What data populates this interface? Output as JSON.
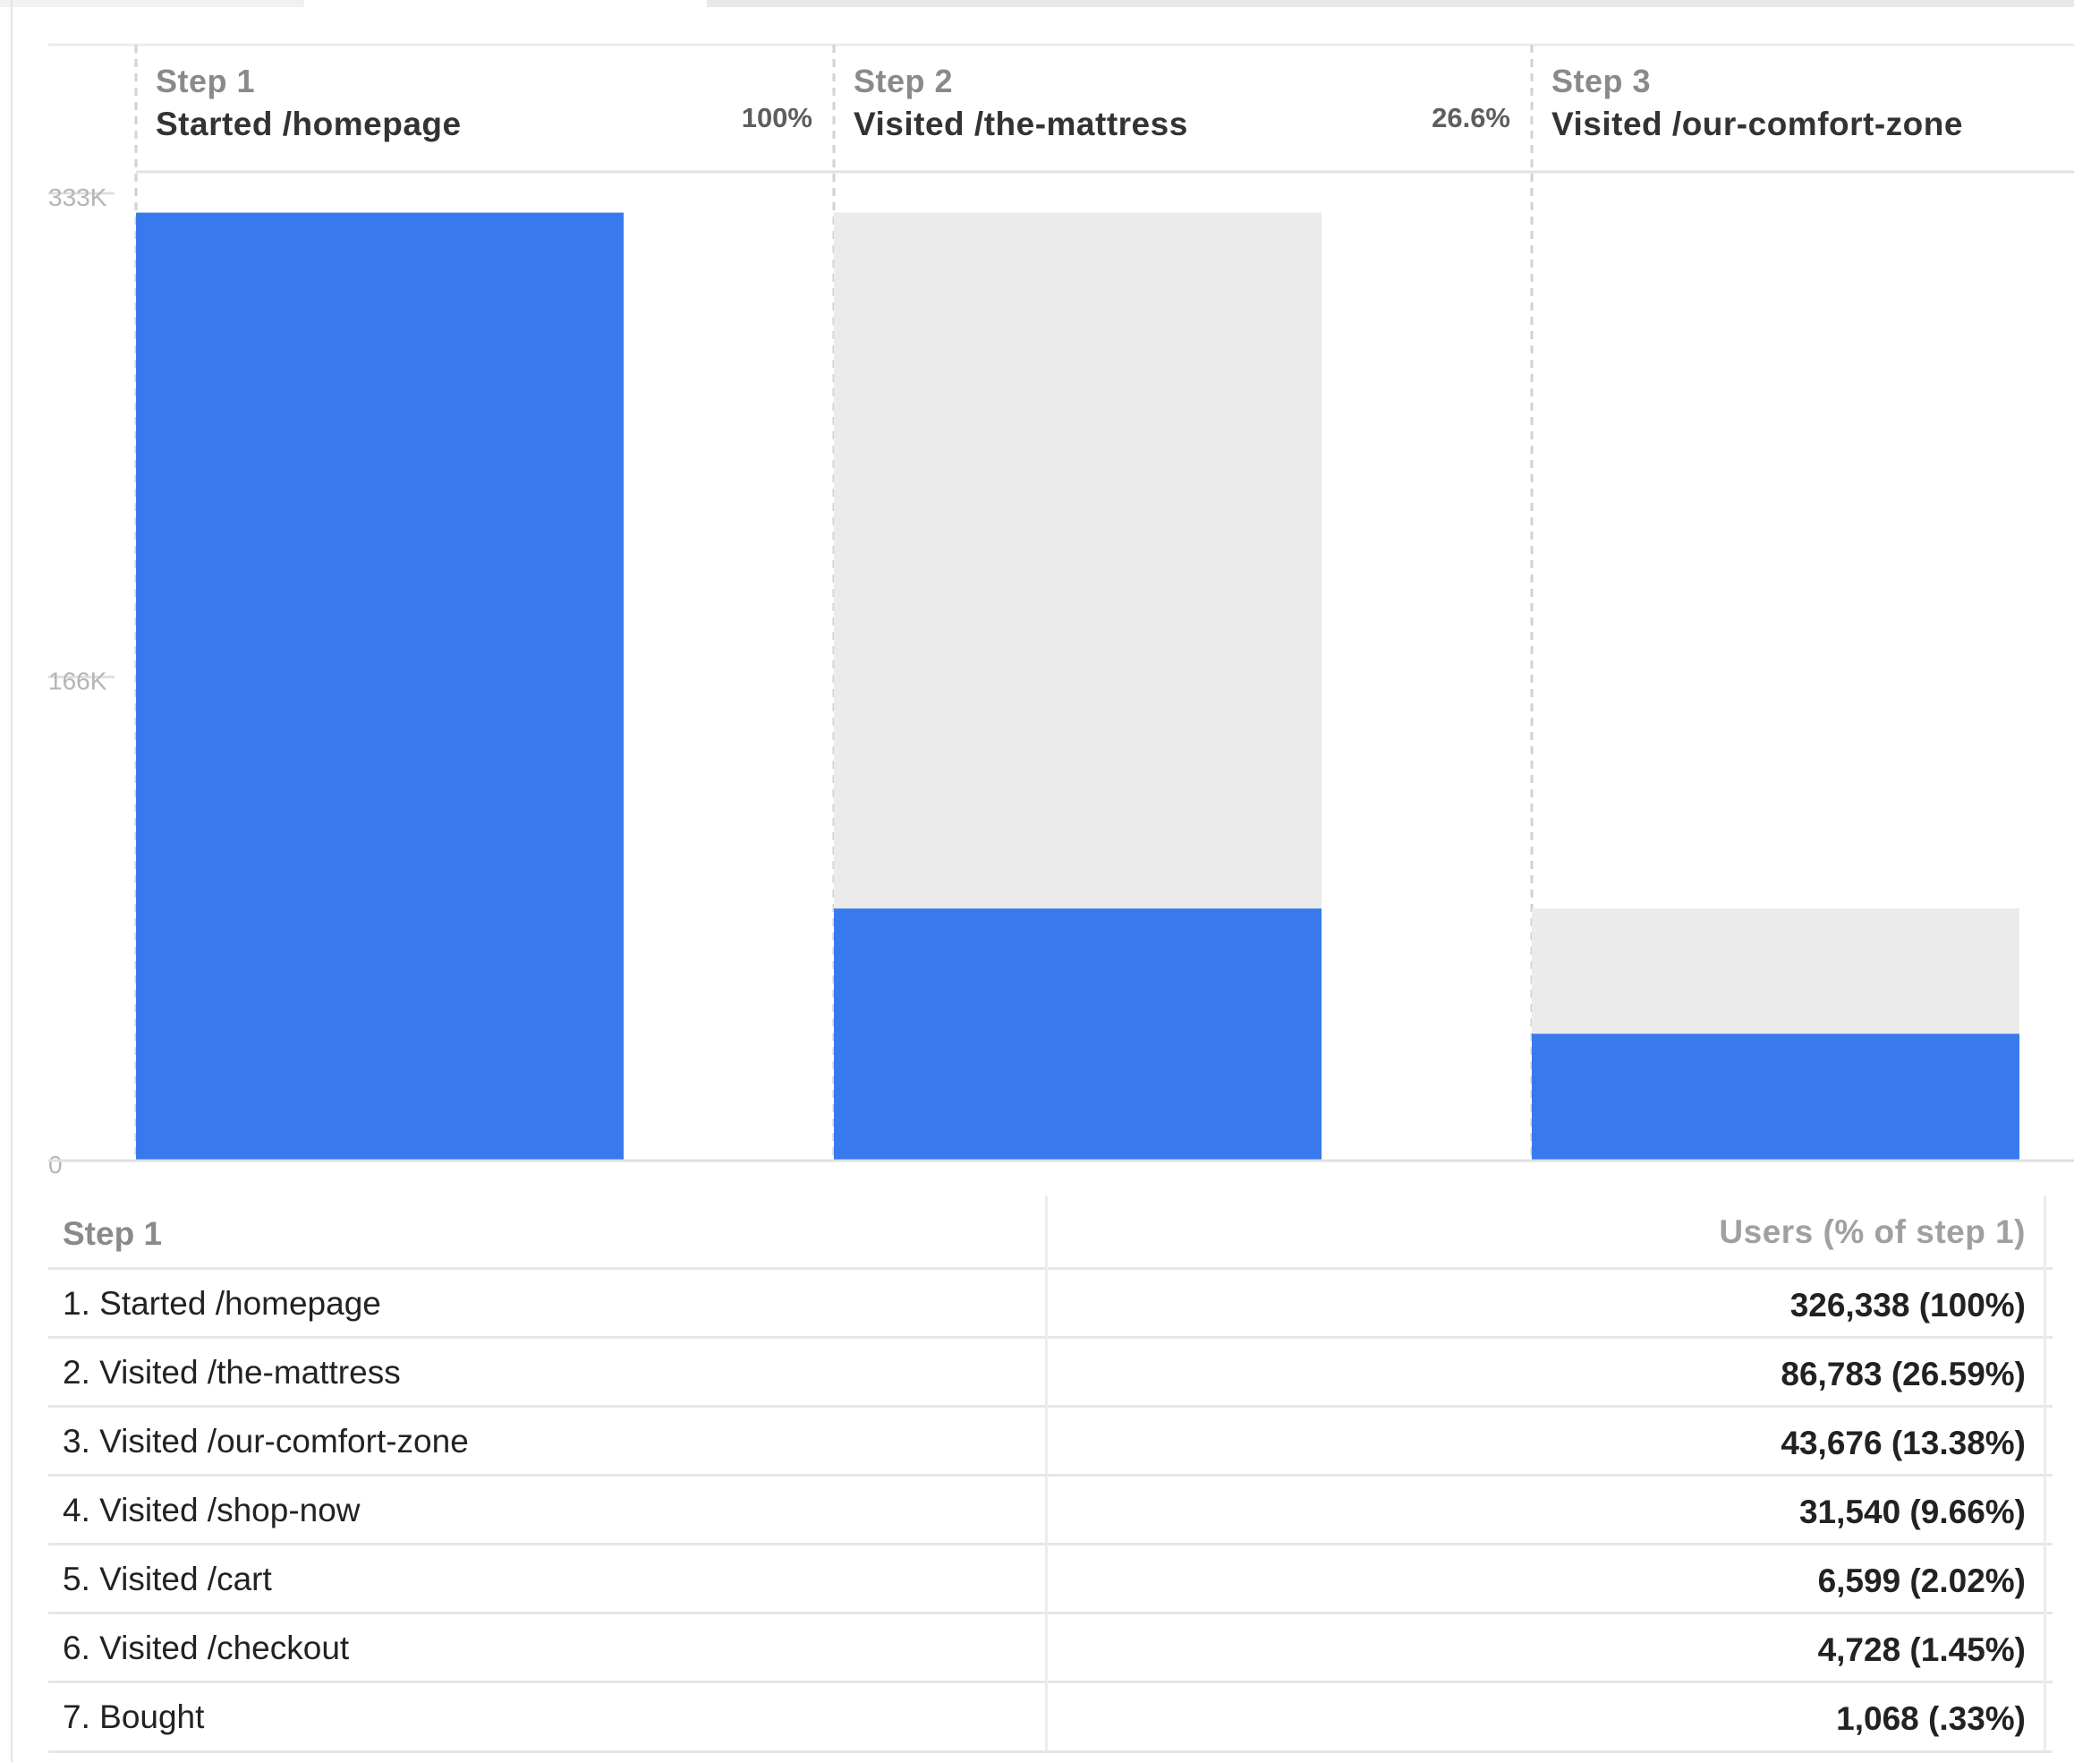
{
  "chart_data": {
    "type": "bar",
    "title": "",
    "xlabel": "",
    "ylabel": "",
    "ylim": [
      0,
      333000
    ],
    "y_ticks": [
      "333K",
      "166K",
      "0"
    ],
    "categories": [
      "Step 1",
      "Step 2",
      "Step 3"
    ],
    "steps": [
      {
        "step": "Step 1",
        "name": "Started /homepage",
        "pct_label": "100%",
        "value": 326338,
        "previous": null
      },
      {
        "step": "Step 2",
        "name": "Visited /the-mattress",
        "pct_label": "26.6%",
        "value": 86783,
        "previous": 326338
      },
      {
        "step": "Step 3",
        "name": "Visited /our-comfort-zone",
        "pct_label": "",
        "value": 43676,
        "previous": 86783
      }
    ],
    "series": [
      {
        "values": [
          326338,
          86783,
          43676
        ]
      }
    ],
    "grid": false,
    "colors": {
      "users": "#3879ee",
      "dropoff": "#ebebeb"
    }
  },
  "table": {
    "header_left": "Step 1",
    "header_right": "Users (% of step 1)",
    "rows": [
      {
        "name": "1. Started /homepage",
        "value": "326,338 (100%)"
      },
      {
        "name": "2. Visited /the-mattress",
        "value": "86,783 (26.59%)"
      },
      {
        "name": "3. Visited /our-comfort-zone",
        "value": "43,676 (13.38%)"
      },
      {
        "name": "4. Visited /shop-now",
        "value": "31,540 (9.66%)"
      },
      {
        "name": "5. Visited /cart",
        "value": "6,599 (2.02%)"
      },
      {
        "name": "6. Visited /checkout",
        "value": "4,728 (1.45%)"
      },
      {
        "name": "7. Bought",
        "value": "1,068 (.33%)"
      }
    ]
  }
}
